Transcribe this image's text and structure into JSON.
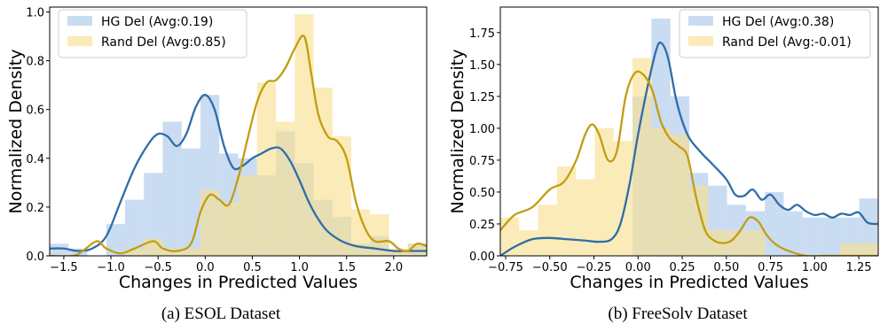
{
  "colors": {
    "hg_hist": "#a9c6e8",
    "hg_line": "#2f6da8",
    "rand_hist": "#f8de8c",
    "rand_line": "#c29d12"
  },
  "chart_data": [
    {
      "type": "area",
      "caption": "(a) ESOL Dataset",
      "xlabel": "Changes in Predicted Values",
      "ylabel": "Normalized Density",
      "xlim": [
        -1.65,
        2.35
      ],
      "ylim": [
        0,
        1.02
      ],
      "xticks": [
        -1.5,
        -1.0,
        -0.5,
        0.0,
        0.5,
        1.0,
        1.5,
        2.0
      ],
      "xtick_labels": [
        "−1.5",
        "−1.0",
        "−0.5",
        "0.0",
        "0.5",
        "1.0",
        "1.5",
        "2.0"
      ],
      "yticks": [
        0.0,
        0.2,
        0.4,
        0.6,
        0.8,
        1.0
      ],
      "ytick_labels": [
        "0.0",
        "0.2",
        "0.4",
        "0.6",
        "0.8",
        "1.0"
      ],
      "legend_position": "top-left",
      "series": [
        {
          "name": "HG Del (Avg:0.19)",
          "color_key": "hg",
          "hist_bin_width": 0.2,
          "hist": [
            [
              -1.65,
              0.05
            ],
            [
              -1.45,
              0.03
            ],
            [
              -1.25,
              0.0
            ],
            [
              -1.05,
              0.13
            ],
            [
              -0.85,
              0.23
            ],
            [
              -0.65,
              0.34
            ],
            [
              -0.45,
              0.55
            ],
            [
              -0.25,
              0.44
            ],
            [
              -0.05,
              0.66
            ],
            [
              0.15,
              0.42
            ],
            [
              0.35,
              0.4
            ],
            [
              0.55,
              0.33
            ],
            [
              0.75,
              0.51
            ],
            [
              0.95,
              0.38
            ],
            [
              1.15,
              0.23
            ],
            [
              1.35,
              0.16
            ],
            [
              1.55,
              0.05
            ],
            [
              1.75,
              0.08
            ],
            [
              1.95,
              0.02
            ],
            [
              2.15,
              0.05
            ]
          ],
          "kde": [
            [
              -1.65,
              0.03
            ],
            [
              -1.5,
              0.03
            ],
            [
              -1.35,
              0.02
            ],
            [
              -1.2,
              0.03
            ],
            [
              -1.05,
              0.08
            ],
            [
              -0.9,
              0.22
            ],
            [
              -0.75,
              0.36
            ],
            [
              -0.6,
              0.46
            ],
            [
              -0.5,
              0.5
            ],
            [
              -0.4,
              0.49
            ],
            [
              -0.3,
              0.45
            ],
            [
              -0.2,
              0.5
            ],
            [
              -0.1,
              0.61
            ],
            [
              0.0,
              0.66
            ],
            [
              0.1,
              0.6
            ],
            [
              0.2,
              0.45
            ],
            [
              0.3,
              0.36
            ],
            [
              0.4,
              0.37
            ],
            [
              0.5,
              0.4
            ],
            [
              0.6,
              0.42
            ],
            [
              0.7,
              0.44
            ],
            [
              0.8,
              0.44
            ],
            [
              0.9,
              0.39
            ],
            [
              1.0,
              0.31
            ],
            [
              1.1,
              0.22
            ],
            [
              1.2,
              0.15
            ],
            [
              1.3,
              0.1
            ],
            [
              1.45,
              0.06
            ],
            [
              1.6,
              0.04
            ],
            [
              1.8,
              0.03
            ],
            [
              2.0,
              0.02
            ],
            [
              2.15,
              0.02
            ],
            [
              2.35,
              0.02
            ]
          ]
        },
        {
          "name": "Rand Del (Avg:0.85)",
          "color_key": "rand",
          "hist_bin_width": 0.2,
          "hist": [
            [
              -1.65,
              0.0
            ],
            [
              -1.45,
              0.0
            ],
            [
              -1.25,
              0.0
            ],
            [
              -1.05,
              0.0
            ],
            [
              -0.85,
              0.03
            ],
            [
              -0.65,
              0.07
            ],
            [
              -0.45,
              0.03
            ],
            [
              -0.25,
              0.03
            ],
            [
              -0.05,
              0.27
            ],
            [
              0.15,
              0.22
            ],
            [
              0.35,
              0.33
            ],
            [
              0.55,
              0.71
            ],
            [
              0.75,
              0.55
            ],
            [
              0.95,
              0.99
            ],
            [
              1.15,
              0.69
            ],
            [
              1.35,
              0.49
            ],
            [
              1.55,
              0.19
            ],
            [
              1.75,
              0.17
            ],
            [
              1.95,
              0.03
            ],
            [
              2.15,
              0.05
            ]
          ],
          "kde": [
            [
              -1.65,
              0.0
            ],
            [
              -1.4,
              0.0
            ],
            [
              -1.3,
              0.02
            ],
            [
              -1.15,
              0.06
            ],
            [
              -1.05,
              0.03
            ],
            [
              -0.9,
              0.01
            ],
            [
              -0.75,
              0.03
            ],
            [
              -0.55,
              0.06
            ],
            [
              -0.45,
              0.03
            ],
            [
              -0.3,
              0.02
            ],
            [
              -0.15,
              0.05
            ],
            [
              -0.05,
              0.18
            ],
            [
              0.05,
              0.25
            ],
            [
              0.15,
              0.23
            ],
            [
              0.25,
              0.21
            ],
            [
              0.35,
              0.32
            ],
            [
              0.45,
              0.48
            ],
            [
              0.55,
              0.63
            ],
            [
              0.65,
              0.71
            ],
            [
              0.75,
              0.72
            ],
            [
              0.85,
              0.77
            ],
            [
              0.95,
              0.85
            ],
            [
              1.05,
              0.9
            ],
            [
              1.12,
              0.76
            ],
            [
              1.2,
              0.58
            ],
            [
              1.3,
              0.49
            ],
            [
              1.4,
              0.47
            ],
            [
              1.5,
              0.4
            ],
            [
              1.6,
              0.22
            ],
            [
              1.7,
              0.11
            ],
            [
              1.8,
              0.06
            ],
            [
              1.95,
              0.06
            ],
            [
              2.05,
              0.03
            ],
            [
              2.15,
              0.02
            ],
            [
              2.25,
              0.05
            ],
            [
              2.35,
              0.04
            ]
          ]
        }
      ]
    },
    {
      "type": "area",
      "caption": "(b) FreeSolv Dataset",
      "xlabel": "Changes in Predicted Values",
      "ylabel": "Normalized Density",
      "xlim": [
        -0.78,
        1.36
      ],
      "ylim": [
        0,
        1.95
      ],
      "xticks": [
        -0.75,
        -0.5,
        -0.25,
        0.0,
        0.25,
        0.5,
        0.75,
        1.0,
        1.25
      ],
      "xtick_labels": [
        "−0.75",
        "−0.50",
        "−0.25",
        "0.00",
        "0.25",
        "0.50",
        "0.75",
        "1.00",
        "1.25"
      ],
      "yticks": [
        0.0,
        0.25,
        0.5,
        0.75,
        1.0,
        1.25,
        1.5,
        1.75
      ],
      "ytick_labels": [
        "0.00",
        "0.25",
        "0.50",
        "0.75",
        "1.00",
        "1.25",
        "1.50",
        "1.75"
      ],
      "legend_position": "top-right",
      "series": [
        {
          "name": "HG Del (Avg:0.38)",
          "color_key": "hg",
          "hist_bin_width": 0.107,
          "hist": [
            [
              -0.78,
              0.0
            ],
            [
              -0.673,
              0.0
            ],
            [
              -0.566,
              0.0
            ],
            [
              -0.459,
              0.0
            ],
            [
              -0.352,
              0.0
            ],
            [
              -0.245,
              0.0
            ],
            [
              -0.138,
              0.0
            ],
            [
              -0.031,
              1.25
            ],
            [
              0.076,
              1.86
            ],
            [
              0.183,
              1.25
            ],
            [
              0.29,
              0.65
            ],
            [
              0.397,
              0.55
            ],
            [
              0.504,
              0.4
            ],
            [
              0.611,
              0.35
            ],
            [
              0.718,
              0.5
            ],
            [
              0.825,
              0.35
            ],
            [
              0.932,
              0.3
            ],
            [
              1.039,
              0.3
            ],
            [
              1.146,
              0.3
            ],
            [
              1.253,
              0.45
            ]
          ],
          "kde": [
            [
              -0.78,
              0.0
            ],
            [
              -0.7,
              0.07
            ],
            [
              -0.6,
              0.13
            ],
            [
              -0.5,
              0.14
            ],
            [
              -0.4,
              0.13
            ],
            [
              -0.3,
              0.12
            ],
            [
              -0.22,
              0.11
            ],
            [
              -0.15,
              0.13
            ],
            [
              -0.1,
              0.25
            ],
            [
              -0.05,
              0.55
            ],
            [
              0.0,
              0.95
            ],
            [
              0.05,
              1.3
            ],
            [
              0.1,
              1.6
            ],
            [
              0.13,
              1.67
            ],
            [
              0.17,
              1.55
            ],
            [
              0.22,
              1.2
            ],
            [
              0.28,
              0.95
            ],
            [
              0.35,
              0.82
            ],
            [
              0.42,
              0.72
            ],
            [
              0.5,
              0.6
            ],
            [
              0.55,
              0.48
            ],
            [
              0.6,
              0.47
            ],
            [
              0.65,
              0.52
            ],
            [
              0.7,
              0.44
            ],
            [
              0.75,
              0.48
            ],
            [
              0.8,
              0.4
            ],
            [
              0.85,
              0.36
            ],
            [
              0.9,
              0.4
            ],
            [
              0.95,
              0.35
            ],
            [
              1.0,
              0.32
            ],
            [
              1.05,
              0.33
            ],
            [
              1.1,
              0.3
            ],
            [
              1.15,
              0.33
            ],
            [
              1.2,
              0.32
            ],
            [
              1.25,
              0.34
            ],
            [
              1.3,
              0.26
            ],
            [
              1.36,
              0.25
            ]
          ]
        },
        {
          "name": "Rand Del (Avg:-0.01)",
          "color_key": "rand",
          "hist_bin_width": 0.107,
          "hist": [
            [
              -0.78,
              0.3
            ],
            [
              -0.673,
              0.2
            ],
            [
              -0.566,
              0.4
            ],
            [
              -0.459,
              0.7
            ],
            [
              -0.352,
              0.6
            ],
            [
              -0.245,
              1.0
            ],
            [
              -0.138,
              0.9
            ],
            [
              -0.031,
              1.55
            ],
            [
              0.076,
              1.0
            ],
            [
              0.183,
              0.95
            ],
            [
              0.29,
              0.55
            ],
            [
              0.397,
              0.2
            ],
            [
              0.504,
              0.2
            ],
            [
              0.611,
              0.2
            ],
            [
              0.718,
              0.0
            ],
            [
              0.825,
              0.0
            ],
            [
              0.932,
              0.0
            ],
            [
              1.039,
              0.0
            ],
            [
              1.146,
              0.1
            ],
            [
              1.253,
              0.1
            ]
          ],
          "kde": [
            [
              -0.78,
              0.2
            ],
            [
              -0.7,
              0.32
            ],
            [
              -0.6,
              0.38
            ],
            [
              -0.5,
              0.52
            ],
            [
              -0.42,
              0.58
            ],
            [
              -0.35,
              0.75
            ],
            [
              -0.3,
              0.95
            ],
            [
              -0.26,
              1.03
            ],
            [
              -0.22,
              0.95
            ],
            [
              -0.17,
              0.75
            ],
            [
              -0.12,
              0.82
            ],
            [
              -0.07,
              1.25
            ],
            [
              -0.02,
              1.43
            ],
            [
              0.03,
              1.42
            ],
            [
              0.08,
              1.3
            ],
            [
              0.13,
              1.05
            ],
            [
              0.18,
              0.92
            ],
            [
              0.23,
              0.86
            ],
            [
              0.28,
              0.78
            ],
            [
              0.33,
              0.45
            ],
            [
              0.38,
              0.2
            ],
            [
              0.43,
              0.12
            ],
            [
              0.48,
              0.1
            ],
            [
              0.53,
              0.12
            ],
            [
              0.58,
              0.2
            ],
            [
              0.63,
              0.3
            ],
            [
              0.68,
              0.27
            ],
            [
              0.73,
              0.16
            ],
            [
              0.78,
              0.09
            ],
            [
              0.85,
              0.04
            ],
            [
              0.95,
              0.0
            ],
            [
              1.05,
              0.0
            ],
            [
              1.15,
              0.0
            ],
            [
              1.25,
              0.0
            ],
            [
              1.36,
              0.0
            ]
          ]
        }
      ]
    }
  ]
}
